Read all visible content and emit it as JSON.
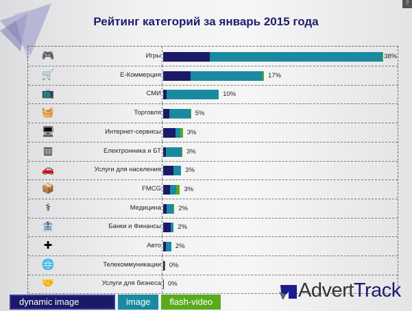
{
  "chart_data": {
    "type": "bar",
    "orientation": "horizontal-stacked",
    "title": "Рейтинг категорий за январь 2015 года",
    "categories": [
      "Игры",
      "Е-Коммерция",
      "СМИ",
      "Торговля",
      "Интернет-сервисы",
      "Електронника и БТ",
      "Услуги для населения",
      "FMCG",
      "Медицина",
      "Банки и Финансы",
      "Авто",
      "Телекоммуникации",
      "Услуги для бизнеса"
    ],
    "icons": [
      "gamepad-icon",
      "ecommerce-icon",
      "media-icon",
      "shopping-basket-icon",
      "server-icon",
      "barcode-icon",
      "car-icon",
      "box-icon",
      "medicine-icon",
      "bank-icon",
      "auto-cross-icon",
      "globe-icon",
      "handshake-icon"
    ],
    "totals": [
      "38%",
      "17%",
      "10%",
      "5%",
      "3%",
      "3%",
      "3%",
      "3%",
      "2%",
      "2%",
      "2%",
      "0%",
      "0%"
    ],
    "series": [
      {
        "name": "dynamic image",
        "color": "#1a1a66",
        "values": [
          8.0,
          4.7,
          0.6,
          1.1,
          2.1,
          0.5,
          1.8,
          1.2,
          0.6,
          1.3,
          0.5,
          0.2,
          0.1
        ]
      },
      {
        "name": "image",
        "color": "#1a8aa0",
        "values": [
          29.9,
          12.5,
          9.0,
          3.6,
          0.9,
          2.7,
          1.3,
          1.1,
          1.2,
          0.5,
          0.9,
          0,
          0
        ]
      },
      {
        "name": "flash-video",
        "color": "#5aaa1e",
        "values": [
          0.1,
          0.2,
          0,
          0.05,
          0.4,
          0.05,
          0,
          0.6,
          0.1,
          0,
          0,
          0.1,
          0
        ]
      }
    ],
    "xlim": [
      0,
      38
    ],
    "legend": "bottom-left"
  },
  "logo": {
    "text_a": "Advert",
    "text_b": "Track"
  },
  "corner": "?"
}
